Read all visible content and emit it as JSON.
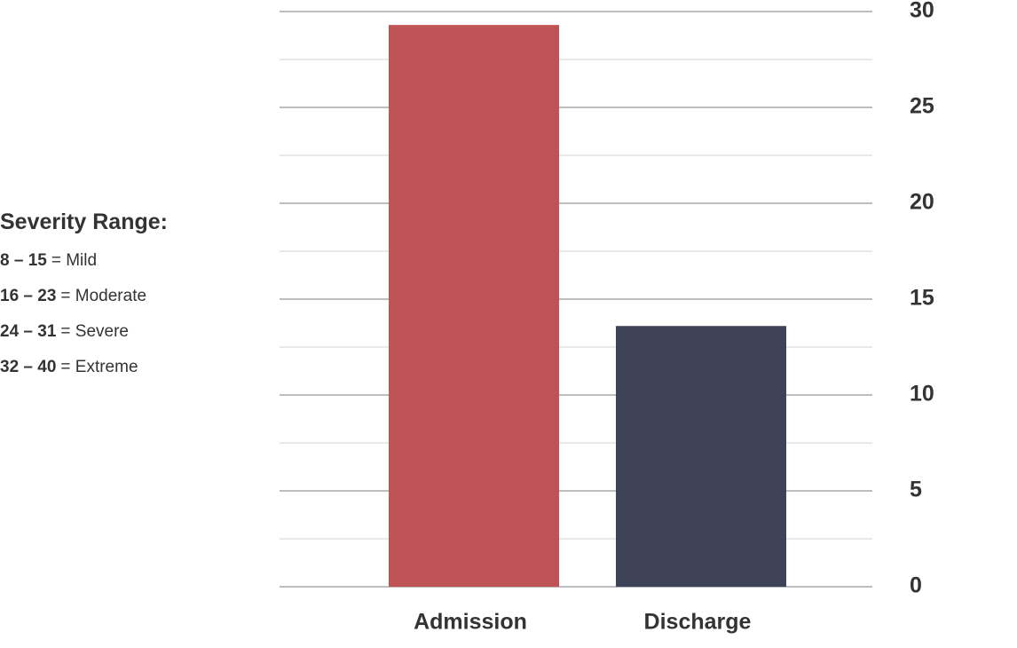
{
  "chart_data": {
    "type": "bar",
    "categories": [
      "Admission",
      "Discharge"
    ],
    "values": [
      29.3,
      13.6
    ],
    "colors": [
      "#bf5457",
      "#3e4358"
    ],
    "ylim": [
      0,
      30
    ],
    "yticks": [
      0,
      5,
      10,
      15,
      20,
      25,
      30
    ],
    "minor_yticks": [
      2.5,
      7.5,
      12.5,
      17.5,
      22.5,
      27.5
    ],
    "grid": true,
    "y_axis_side": "right"
  },
  "severity_legend": {
    "title": "Severity Range:",
    "items": [
      {
        "range": "8 – 15",
        "label": "= Mild"
      },
      {
        "range": "16 – 23",
        "label": "= Moderate"
      },
      {
        "range": "24 – 31",
        "label": "= Severe"
      },
      {
        "range": "32 – 40",
        "label": "= Extreme"
      }
    ]
  }
}
